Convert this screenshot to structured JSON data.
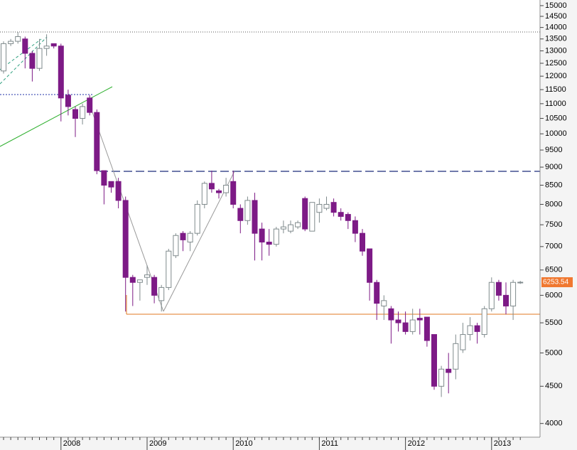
{
  "chart_data": {
    "type": "candlestick",
    "categories": [
      null,
      null,
      null,
      null,
      null,
      null,
      null,
      null,
      "2008",
      null,
      null,
      null,
      null,
      null,
      null,
      null,
      null,
      null,
      null,
      null,
      "2009",
      null,
      null,
      null,
      null,
      null,
      null,
      null,
      null,
      null,
      null,
      null,
      "2010",
      null,
      null,
      null,
      null,
      null,
      null,
      null,
      null,
      null,
      null,
      null,
      "2011",
      null,
      null,
      null,
      null,
      null,
      null,
      null,
      null,
      null,
      null,
      null,
      "2012",
      null,
      null,
      null,
      null,
      null,
      null,
      null,
      null,
      null,
      null,
      null,
      "2013",
      null,
      null,
      null,
      null
    ],
    "open": [
      12200,
      13300,
      13400,
      13500,
      12900,
      12300,
      13100,
      13300,
      13200,
      11300,
      10800,
      10500,
      11200,
      10700,
      8900,
      8600,
      8600,
      8100,
      6350,
      6250,
      6350,
      6350,
      5900,
      6150,
      6800,
      7300,
      7100,
      7300,
      8000,
      8550,
      8350,
      8300,
      8600,
      7900,
      7600,
      8100,
      7400,
      7100,
      7050,
      7400,
      7350,
      7450,
      8150,
      7350,
      7800,
      7900,
      8050,
      7800,
      7750,
      7600,
      7300,
      6950,
      6250,
      5800,
      5750,
      5550,
      5500,
      5350,
      5580,
      5600,
      5300,
      4500,
      4750,
      4750,
      5050,
      5300,
      5450,
      5300,
      5750,
      6250,
      6000,
      5800,
      6250
    ],
    "high": [
      13400,
      13500,
      13800,
      13600,
      13000,
      13500,
      13700,
      13300,
      13300,
      11500,
      10900,
      11000,
      11300,
      10800,
      8900,
      8600,
      8700,
      8200,
      6400,
      6300,
      6600,
      6400,
      6200,
      6950,
      7300,
      7350,
      7350,
      8100,
      8600,
      8900,
      8400,
      8700,
      8900,
      8000,
      8200,
      8300,
      7550,
      7400,
      7450,
      7600,
      7600,
      7600,
      8200,
      8050,
      8150,
      8200,
      8150,
      7900,
      7800,
      7700,
      7400,
      6950,
      6300,
      6000,
      5800,
      5700,
      5700,
      5750,
      5750,
      5600,
      5300,
      4800,
      5000,
      5300,
      5500,
      5600,
      5500,
      5800,
      6350,
      6300,
      6250,
      6300,
      6280
    ],
    "low": [
      12100,
      13200,
      13300,
      12300,
      11800,
      12200,
      12800,
      13100,
      10400,
      10600,
      9900,
      10300,
      10600,
      8800,
      8000,
      8300,
      7900,
      5700,
      5800,
      5900,
      6200,
      5850,
      5700,
      6100,
      6750,
      6900,
      6900,
      7250,
      7900,
      8300,
      8150,
      8200,
      7900,
      7300,
      7500,
      6700,
      6700,
      6800,
      7000,
      7300,
      7300,
      7400,
      7350,
      7350,
      7550,
      7850,
      7700,
      7600,
      7400,
      7100,
      6800,
      5900,
      5550,
      5550,
      5150,
      5350,
      5300,
      5300,
      5300,
      5100,
      4450,
      4350,
      4400,
      4600,
      5000,
      5200,
      5150,
      5250,
      5700,
      5900,
      5650,
      5550,
      6220
    ],
    "close": [
      13300,
      13400,
      13600,
      12900,
      12300,
      13100,
      13200,
      13200,
      11200,
      10900,
      10500,
      10900,
      10700,
      8900,
      8500,
      8450,
      8100,
      6350,
      6250,
      6300,
      6400,
      6000,
      6150,
      6900,
      7250,
      7150,
      7300,
      8000,
      8550,
      8400,
      8300,
      8500,
      8000,
      7600,
      8100,
      7300,
      7100,
      7050,
      7400,
      7450,
      7500,
      7550,
      7400,
      8050,
      8000,
      8000,
      7800,
      7700,
      7600,
      7300,
      6900,
      6250,
      5850,
      5900,
      5550,
      5500,
      5350,
      5550,
      5550,
      5200,
      4500,
      4750,
      4700,
      5150,
      5300,
      5450,
      5350,
      5750,
      6250,
      6000,
      5800,
      6250,
      6253.54
    ],
    "up_color": "#ffffff",
    "down_color": "#7d1a86",
    "edge_color": "#7f8a8c",
    "log_scale": true,
    "ylim": [
      3830,
      15270
    ],
    "yticks": [
      4000,
      4500,
      5000,
      5500,
      6000,
      6500,
      7000,
      7500,
      8000,
      8500,
      9000,
      9500,
      10000,
      10500,
      11000,
      11500,
      12000,
      12500,
      13000,
      13500,
      14000,
      14500,
      15000
    ],
    "last_price": 6253.54,
    "last_price_color": "#f07830"
  }
}
